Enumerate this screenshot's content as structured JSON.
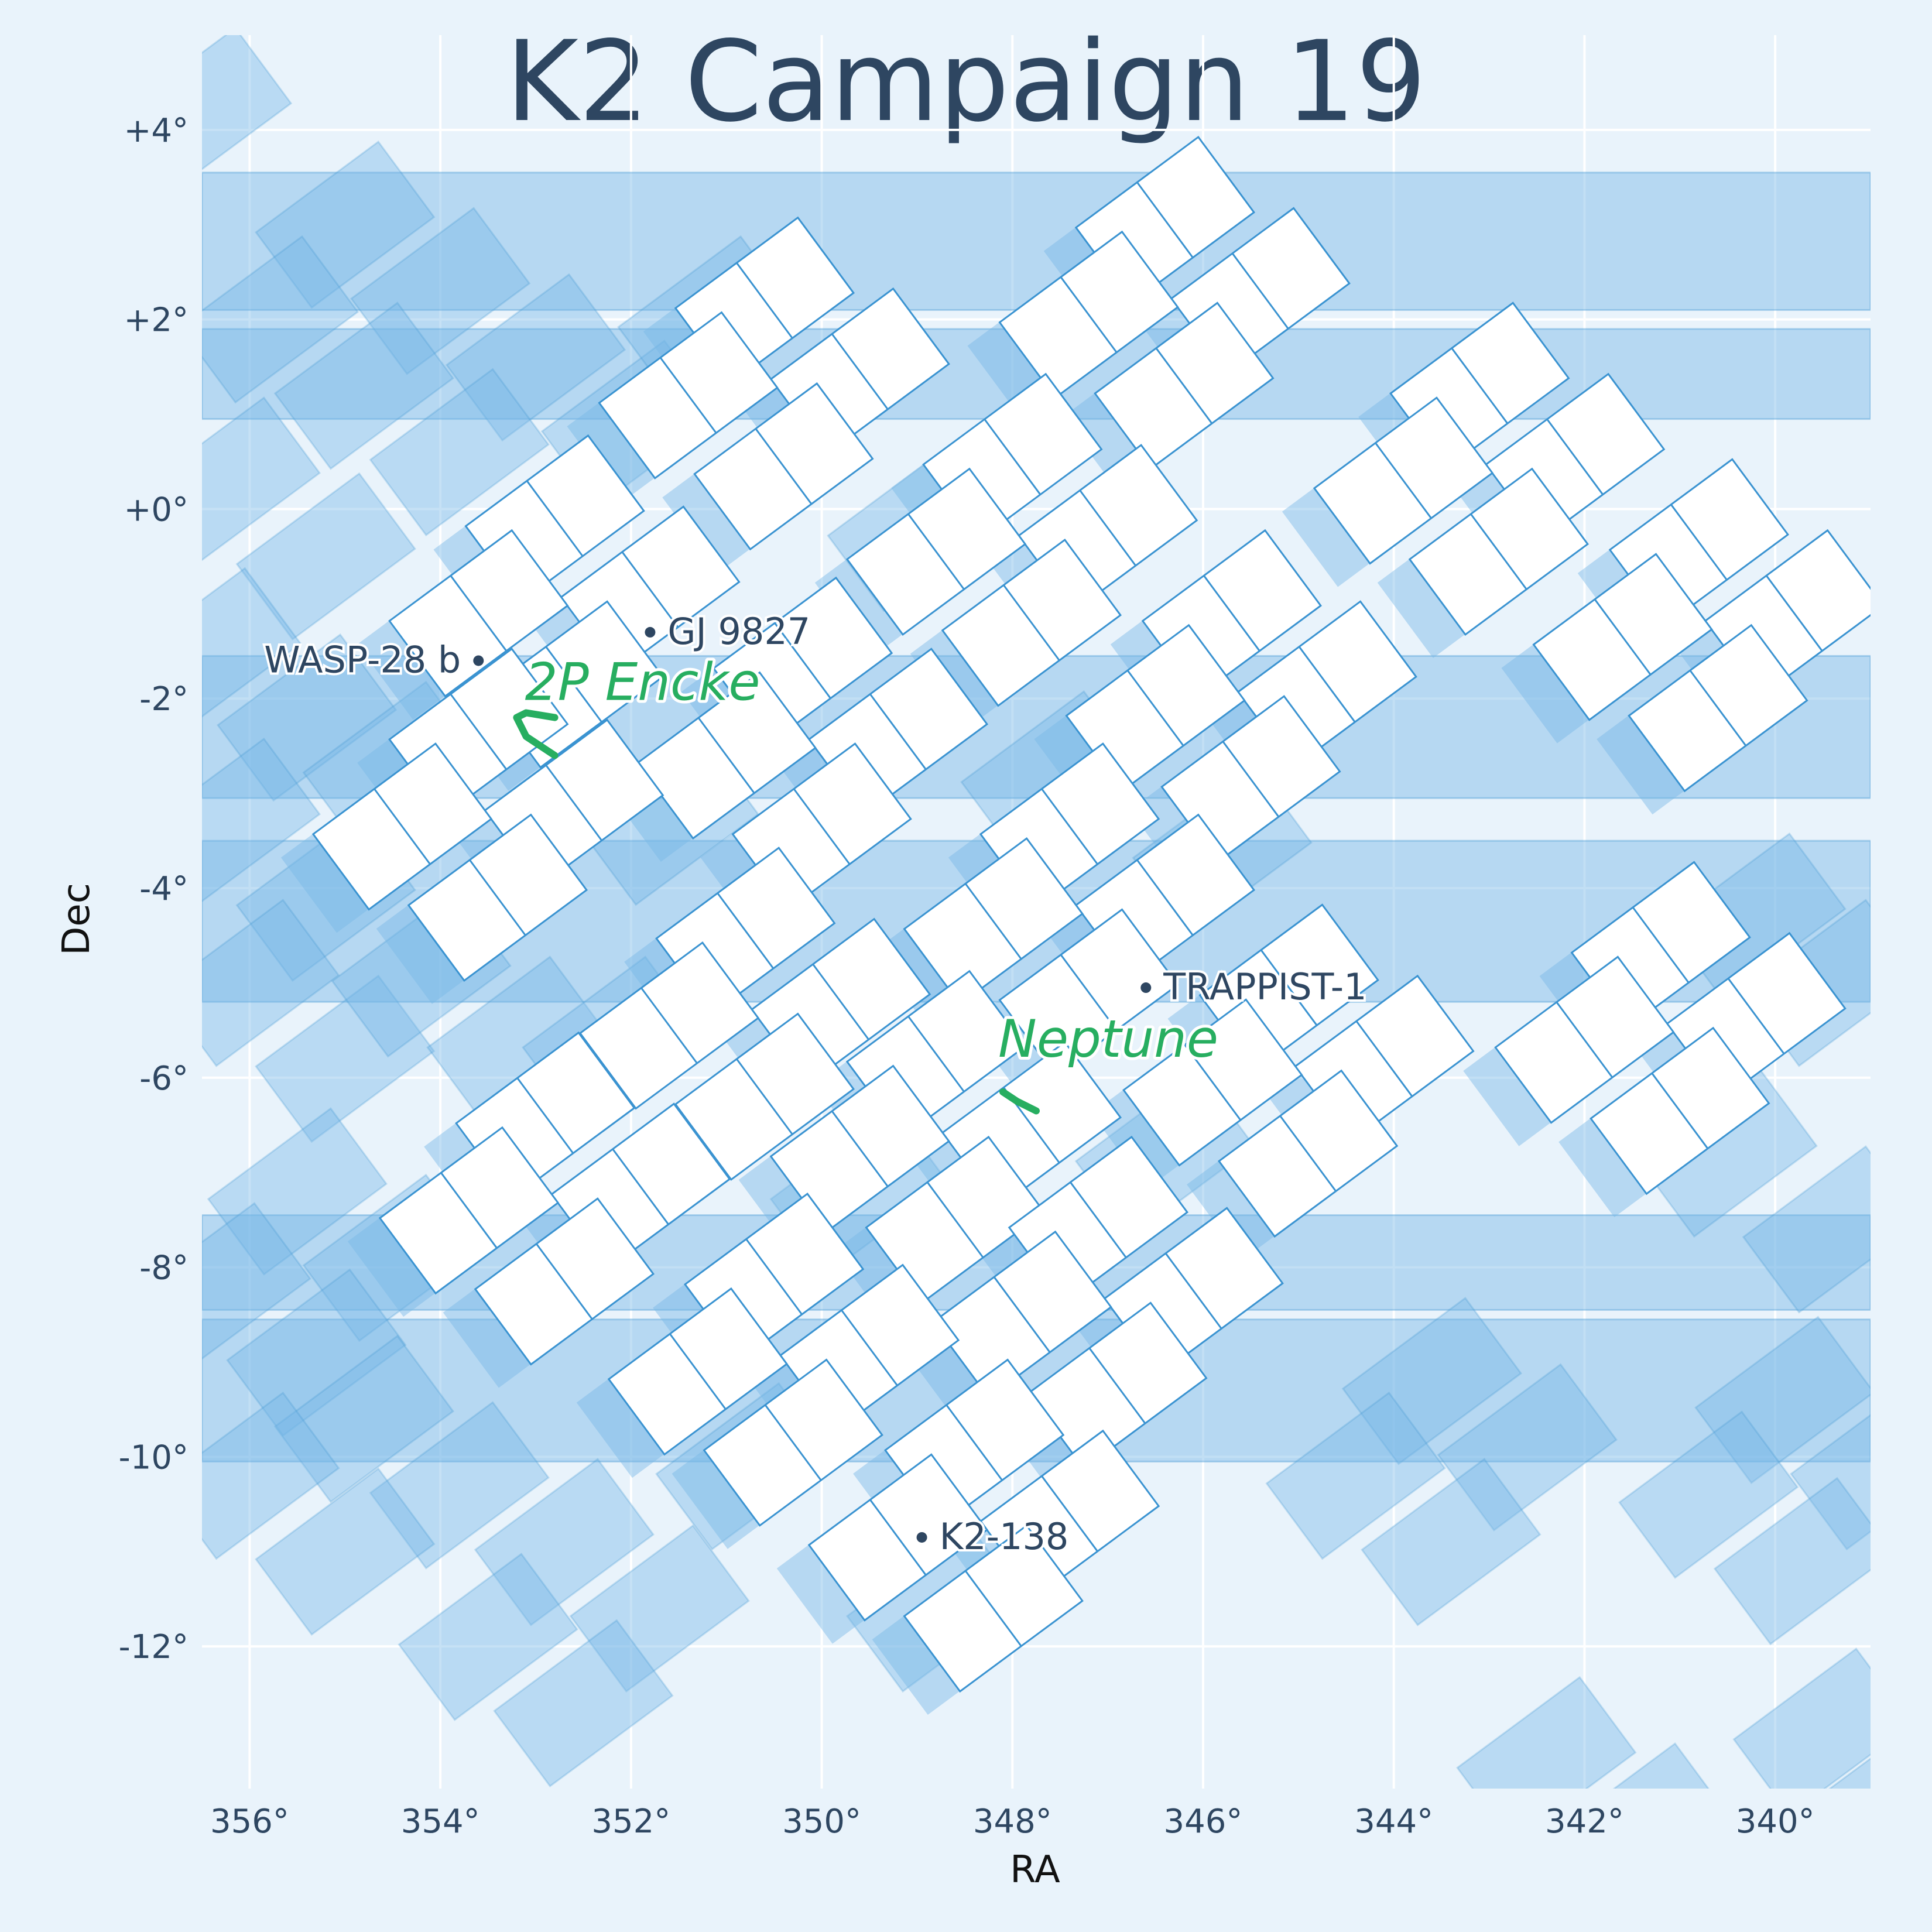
{
  "chart_data": {
    "type": "scatter",
    "title": "K2 Campaign 19",
    "xlabel": "RA",
    "ylabel": "Dec",
    "xlim": [
      356.5,
      339.0
    ],
    "ylim": [
      -13.5,
      5.0
    ],
    "x_ticks": [
      356,
      354,
      352,
      350,
      348,
      346,
      344,
      342,
      340
    ],
    "x_tick_labels": [
      "356°",
      "354°",
      "352°",
      "350°",
      "348°",
      "346°",
      "344°",
      "342°",
      "340°"
    ],
    "y_ticks": [
      4,
      2,
      0,
      -2,
      -4,
      -6,
      -8,
      -10,
      -12
    ],
    "y_tick_labels": [
      "+4°",
      "+2°",
      "+0°",
      "-2°",
      "-4°",
      "-6°",
      "-8°",
      "-10°",
      "-12°"
    ],
    "grid": true,
    "colors": {
      "background": "#e9f3fb",
      "footprint_fill": "#ffffff",
      "footprint_edge": "#3a93d1",
      "other_campaigns": "#77b7e6",
      "grid": "#ffffff",
      "text": "#2e4661",
      "moving_object": "#27ae60"
    },
    "targets": [
      {
        "name": "WASP-28 b",
        "ra": 353.6,
        "dec": -1.6,
        "label_side": "left"
      },
      {
        "name": "GJ 9827",
        "ra": 351.8,
        "dec": -1.3,
        "label_side": "right"
      },
      {
        "name": "TRAPPIST-1",
        "ra": 346.6,
        "dec": -5.05,
        "label_side": "right"
      },
      {
        "name": "K2-138",
        "ra": 348.95,
        "dec": -10.85,
        "label_side": "right"
      }
    ],
    "moving_objects": [
      {
        "name": "2P Encke",
        "track": [
          [
            352.8,
            -2.6
          ],
          [
            353.1,
            -2.4
          ],
          [
            353.2,
            -2.2
          ],
          [
            353.1,
            -2.15
          ],
          [
            352.8,
            -2.2
          ]
        ]
      },
      {
        "name": "Neptune",
        "track": [
          [
            348.1,
            -6.15
          ],
          [
            347.95,
            -6.25
          ],
          [
            347.75,
            -6.35
          ]
        ]
      }
    ],
    "footprint_modules": [
      {
        "ra": 350.6,
        "dec": 2.2
      },
      {
        "ra": 349.6,
        "dec": 1.45
      },
      {
        "ra": 351.4,
        "dec": 1.2
      },
      {
        "ra": 350.4,
        "dec": 0.45
      },
      {
        "ra": 346.4,
        "dec": 3.05
      },
      {
        "ra": 345.4,
        "dec": 2.3
      },
      {
        "ra": 347.2,
        "dec": 2.05
      },
      {
        "ra": 346.2,
        "dec": 1.3
      },
      {
        "ra": 343.1,
        "dec": 1.3
      },
      {
        "ra": 342.1,
        "dec": 0.55
      },
      {
        "ra": 343.9,
        "dec": 0.3
      },
      {
        "ra": 342.9,
        "dec": -0.45
      },
      {
        "ra": 340.8,
        "dec": -0.35
      },
      {
        "ra": 339.8,
        "dec": -1.1
      },
      {
        "ra": 341.6,
        "dec": -1.35
      },
      {
        "ra": 340.6,
        "dec": -2.1
      },
      {
        "ra": 348.0,
        "dec": 0.55
      },
      {
        "ra": 347.0,
        "dec": -0.2
      },
      {
        "ra": 348.8,
        "dec": -0.45
      },
      {
        "ra": 347.8,
        "dec": -1.2
      },
      {
        "ra": 352.8,
        "dec": -0.1
      },
      {
        "ra": 351.8,
        "dec": -0.85
      },
      {
        "ra": 353.6,
        "dec": -1.1
      },
      {
        "ra": 352.6,
        "dec": -1.85
      },
      {
        "ra": 345.7,
        "dec": -1.1
      },
      {
        "ra": 344.7,
        "dec": -1.85
      },
      {
        "ra": 346.5,
        "dec": -2.1
      },
      {
        "ra": 345.5,
        "dec": -2.85
      },
      {
        "ra": 350.2,
        "dec": -1.6
      },
      {
        "ra": 349.2,
        "dec": -2.35
      },
      {
        "ra": 351.0,
        "dec": -2.6
      },
      {
        "ra": 350.0,
        "dec": -3.35
      },
      {
        "ra": 353.6,
        "dec": -2.35
      },
      {
        "ra": 352.6,
        "dec": -3.1
      },
      {
        "ra": 354.4,
        "dec": -3.35
      },
      {
        "ra": 353.4,
        "dec": -4.1
      },
      {
        "ra": 347.4,
        "dec": -3.35
      },
      {
        "ra": 346.4,
        "dec": -4.1
      },
      {
        "ra": 348.2,
        "dec": -4.35
      },
      {
        "ra": 347.2,
        "dec": -5.1
      },
      {
        "ra": 350.8,
        "dec": -4.45
      },
      {
        "ra": 349.8,
        "dec": -5.2
      },
      {
        "ra": 351.6,
        "dec": -5.45
      },
      {
        "ra": 350.6,
        "dec": -6.2
      },
      {
        "ra": 345.1,
        "dec": -5.05
      },
      {
        "ra": 344.1,
        "dec": -5.8
      },
      {
        "ra": 345.9,
        "dec": -6.05
      },
      {
        "ra": 344.9,
        "dec": -6.8
      },
      {
        "ra": 341.2,
        "dec": -4.6
      },
      {
        "ra": 340.2,
        "dec": -5.35
      },
      {
        "ra": 342.0,
        "dec": -5.6
      },
      {
        "ra": 341.0,
        "dec": -6.35
      },
      {
        "ra": 348.8,
        "dec": -5.75
      },
      {
        "ra": 347.8,
        "dec": -6.5
      },
      {
        "ra": 349.6,
        "dec": -6.75
      },
      {
        "ra": 348.6,
        "dec": -7.5
      },
      {
        "ra": 352.9,
        "dec": -6.4
      },
      {
        "ra": 351.9,
        "dec": -7.15
      },
      {
        "ra": 353.7,
        "dec": -7.4
      },
      {
        "ra": 352.7,
        "dec": -8.15
      },
      {
        "ra": 347.1,
        "dec": -7.5
      },
      {
        "ra": 346.1,
        "dec": -8.25
      },
      {
        "ra": 347.9,
        "dec": -8.5
      },
      {
        "ra": 346.9,
        "dec": -9.25
      },
      {
        "ra": 350.5,
        "dec": -8.1
      },
      {
        "ra": 349.5,
        "dec": -8.85
      },
      {
        "ra": 351.3,
        "dec": -9.1
      },
      {
        "ra": 350.3,
        "dec": -9.85
      },
      {
        "ra": 348.4,
        "dec": -9.85
      },
      {
        "ra": 347.4,
        "dec": -10.6
      },
      {
        "ra": 349.2,
        "dec": -10.85
      },
      {
        "ra": 348.2,
        "dec": -11.6
      }
    ],
    "other_campaign_modules": [
      {
        "ra": 356.5,
        "dec": 4.2
      },
      {
        "ra": 355.0,
        "dec": 3.0
      },
      {
        "ra": 354.0,
        "dec": 2.3
      },
      {
        "ra": 355.8,
        "dec": 2.0
      },
      {
        "ra": 354.8,
        "dec": 1.3
      },
      {
        "ra": 353.0,
        "dec": 1.6
      },
      {
        "ra": 352.0,
        "dec": 0.9
      },
      {
        "ra": 353.8,
        "dec": 0.6
      },
      {
        "ra": 352.8,
        "dec": -0.1
      },
      {
        "ra": 356.2,
        "dec": 0.3
      },
      {
        "ra": 355.2,
        "dec": -0.5
      },
      {
        "ra": 356.4,
        "dec": -1.5
      },
      {
        "ra": 355.4,
        "dec": -2.2
      },
      {
        "ra": 354.5,
        "dec": -2.7
      },
      {
        "ra": 356.2,
        "dec": -3.3
      },
      {
        "ra": 355.2,
        "dec": -4.1
      },
      {
        "ra": 356.0,
        "dec": -5.0
      },
      {
        "ra": 355.0,
        "dec": -5.8
      },
      {
        "ra": 354.2,
        "dec": -4.9
      },
      {
        "ra": 353.2,
        "dec": -5.6
      },
      {
        "ra": 355.5,
        "dec": -7.2
      },
      {
        "ra": 354.5,
        "dec": -7.9
      },
      {
        "ra": 356.3,
        "dec": -8.2
      },
      {
        "ra": 355.3,
        "dec": -8.9
      },
      {
        "ra": 354.8,
        "dec": -9.6
      },
      {
        "ra": 353.8,
        "dec": -10.3
      },
      {
        "ra": 356.0,
        "dec": -10.2
      },
      {
        "ra": 355.0,
        "dec": -11.0
      },
      {
        "ra": 352.7,
        "dec": -10.9
      },
      {
        "ra": 351.7,
        "dec": -11.6
      },
      {
        "ra": 353.5,
        "dec": -11.9
      },
      {
        "ra": 352.5,
        "dec": -12.6
      },
      {
        "ra": 351.2,
        "dec": 2.0
      },
      {
        "ra": 349.0,
        "dec": -0.2
      },
      {
        "ra": 351.6,
        "dec": -3.3
      },
      {
        "ra": 349.6,
        "dec": -7.2
      },
      {
        "ra": 350.8,
        "dec": -10.1
      },
      {
        "ra": 348.8,
        "dec": -11.6
      },
      {
        "ra": 346.4,
        "dec": -6.8
      },
      {
        "ra": 347.6,
        "dec": -2.8
      },
      {
        "ra": 345.8,
        "dec": -3.6
      },
      {
        "ra": 352.2,
        "dec": -5.6
      },
      {
        "ra": 343.6,
        "dec": -9.2
      },
      {
        "ra": 342.6,
        "dec": -9.9
      },
      {
        "ra": 344.4,
        "dec": -10.2
      },
      {
        "ra": 343.4,
        "dec": -10.9
      },
      {
        "ra": 339.9,
        "dec": -9.4
      },
      {
        "ra": 338.9,
        "dec": -10.1
      },
      {
        "ra": 340.7,
        "dec": -10.4
      },
      {
        "ra": 339.7,
        "dec": -11.1
      },
      {
        "ra": 340.2,
        "dec": -4.3
      },
      {
        "ra": 339.4,
        "dec": -5.0
      },
      {
        "ra": 340.5,
        "dec": -6.8
      },
      {
        "ra": 339.4,
        "dec": -7.6
      },
      {
        "ra": 342.4,
        "dec": -13.2
      },
      {
        "ra": 341.4,
        "dec": -13.9
      },
      {
        "ra": 339.5,
        "dec": -12.9
      },
      {
        "ra": 338.6,
        "dec": -13.5
      }
    ],
    "other_campaign_bands": [
      {
        "dec_min": 2.1,
        "dec_max": 3.55
      },
      {
        "dec_min": 0.95,
        "dec_max": 1.9
      },
      {
        "dec_min": -3.05,
        "dec_max": -1.55
      },
      {
        "dec_min": -5.2,
        "dec_max": -3.5
      },
      {
        "dec_min": -8.45,
        "dec_max": -7.45
      },
      {
        "dec_min": -10.05,
        "dec_max": -8.55
      }
    ]
  }
}
